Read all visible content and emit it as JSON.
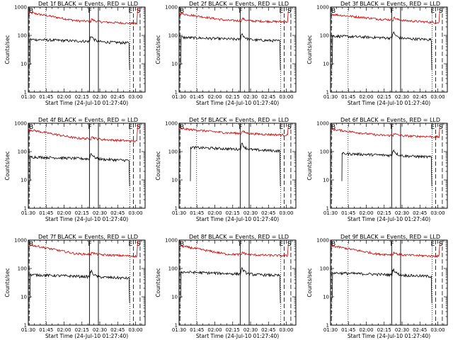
{
  "chart_data": {
    "type": "line",
    "y_scale": "log",
    "ylim": [
      1,
      1000
    ],
    "xlim": [
      "01:30",
      "03:08"
    ],
    "x_ticks": [
      "01:30",
      "01:45",
      "02:00",
      "02:15",
      "02:30",
      "02:45",
      "03:00"
    ],
    "y_ticks": [
      "1",
      "10",
      "100",
      "1000"
    ],
    "ylabel": "Counts/sec",
    "xlabel": "Start Time (24-Jul-10 01:27:40)",
    "markers": {
      "b": "B",
      "f": "F",
      "e": "E",
      "s": "S"
    },
    "series_names": [
      "Events",
      "LLD"
    ],
    "series_colors": {
      "Events": "#000000",
      "LLD": "#d00000"
    },
    "panels": [
      {
        "title": "Det 1f BLACK = Events, RED = LLD",
        "events_level": 72,
        "lld_start": 650,
        "lld_mid": 330,
        "lld_end": 260,
        "events_start_min": 1.5
      },
      {
        "title": "Det 2f BLACK = Events, RED = LLD",
        "events_level": 85,
        "lld_start": 600,
        "lld_mid": 340,
        "lld_end": 300,
        "events_start_min": 1.5
      },
      {
        "title": "Det 3f BLACK = Events, RED = LLD",
        "events_level": 95,
        "lld_start": 560,
        "lld_mid": 380,
        "lld_end": 280,
        "events_start_min": 1.5
      },
      {
        "title": "Det 4f BLACK = Events, RED = LLD",
        "events_level": 65,
        "lld_start": 600,
        "lld_mid": 300,
        "lld_end": 230,
        "events_start_min": 1.5
      },
      {
        "title": "Det 5f BLACK = Events, RED = LLD",
        "events_level": 140,
        "lld_start": 650,
        "lld_mid": 460,
        "lld_end": 380,
        "events_start_min": 9.5
      },
      {
        "title": "Det 6f BLACK = Events, RED = LLD",
        "events_level": 85,
        "lld_start": 620,
        "lld_mid": 380,
        "lld_end": 330,
        "events_start_min": 9.5
      },
      {
        "title": "Det 7f BLACK = Events, RED = LLD",
        "events_level": 60,
        "lld_start": 700,
        "lld_mid": 330,
        "lld_end": 270,
        "events_start_min": 1.5
      },
      {
        "title": "Det 8f BLACK = Events, RED = LLD",
        "events_level": 75,
        "lld_start": 640,
        "lld_mid": 320,
        "lld_end": 280,
        "events_start_min": 1.5
      },
      {
        "title": "Det 9f BLACK = Events, RED = LLD",
        "events_level": 70,
        "lld_start": 640,
        "lld_mid": 320,
        "lld_end": 270,
        "events_start_min": 1.5
      }
    ],
    "vertical_lines": {
      "b_dashed_min": -0.5,
      "dotted_min": [
        14.7,
        85.3
      ],
      "f_solid_min": [
        51.3,
        58.8
      ],
      "e_dashed_min": 88.2,
      "s_dashed_min": 93.8
    }
  }
}
